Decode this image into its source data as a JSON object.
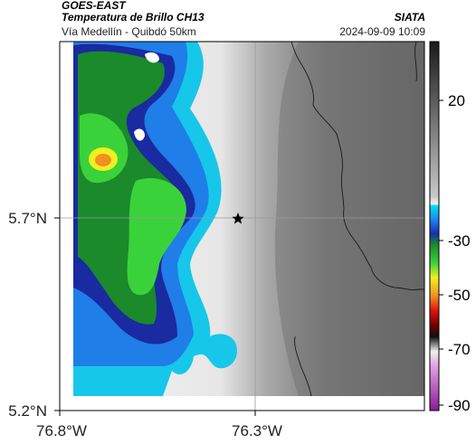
{
  "header": {
    "satellite": "GOES-EAST",
    "title": "Temperatura de Brillo CH13",
    "subtitle": "Vía Medellín - Quibdó 50km",
    "organization": "SIATA",
    "timestamp": "2024-09-09 10:09"
  },
  "map": {
    "x_ticks": [
      "76.8°W",
      "76.3°W"
    ],
    "y_ticks": [
      "5.7°N",
      "5.2°N"
    ],
    "marker": "star-icon"
  },
  "colorbar": {
    "ticks": [
      "20",
      "-30",
      "-50",
      "-70",
      "-90"
    ]
  }
}
